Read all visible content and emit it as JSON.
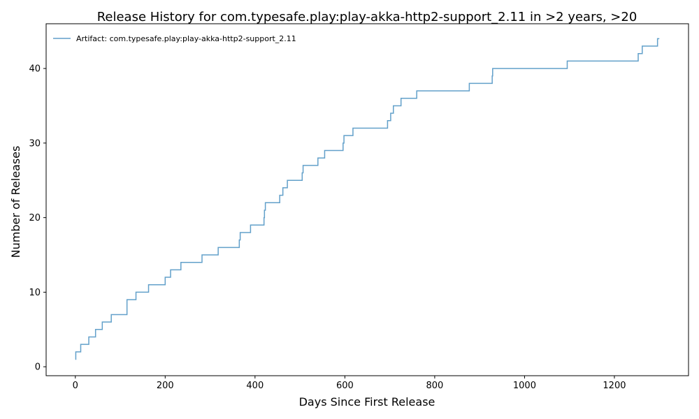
{
  "chart_data": {
    "type": "line",
    "title": "Release History for com.typesafe.play:play-akka-http2-support_2.11 in >2 years, >20",
    "xlabel": "Days Since First Release",
    "ylabel": "Number of Releases",
    "xlim": [
      -65,
      1365
    ],
    "ylim": [
      -1.2,
      46.0
    ],
    "xticks": [
      0,
      200,
      400,
      600,
      800,
      1000,
      1200
    ],
    "yticks": [
      0,
      10,
      20,
      30,
      40
    ],
    "grid": false,
    "legend_position": "top-left",
    "step": "post",
    "series": [
      {
        "name": "Artifact: com.typesafe.play:play-akka-http2-support_2.11",
        "color": "#1f77b4",
        "x": [
          0,
          1,
          12,
          30,
          45,
          60,
          80,
          115,
          135,
          163,
          200,
          212,
          235,
          282,
          318,
          365,
          367,
          390,
          420,
          421,
          423,
          425,
          455,
          462,
          472,
          505,
          507,
          540,
          555,
          596,
          598,
          618,
          695,
          702,
          708,
          715,
          725,
          760,
          877,
          928,
          929,
          1095,
          1253,
          1262,
          1296,
          1300
        ],
        "y": [
          1,
          2,
          3,
          4,
          5,
          6,
          7,
          9,
          10,
          11,
          12,
          13,
          14,
          15,
          16,
          17,
          18,
          19,
          20,
          21,
          22,
          22,
          23,
          24,
          25,
          26,
          27,
          28,
          29,
          30,
          31,
          32,
          33,
          34,
          35,
          35,
          36,
          37,
          38,
          39,
          40,
          41,
          42,
          43,
          44,
          44
        ]
      }
    ]
  }
}
